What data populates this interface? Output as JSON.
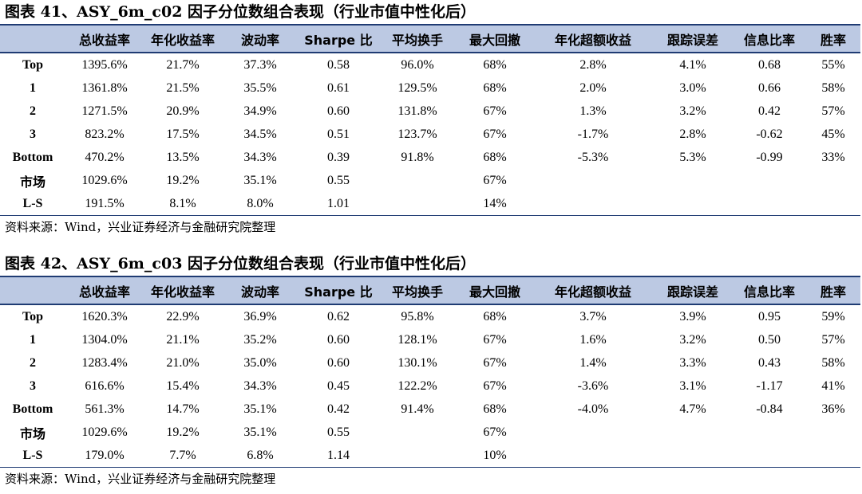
{
  "headers": [
    "",
    "总收益率",
    "年化收益率",
    "波动率",
    "Sharpe 比",
    "平均换手",
    "最大回撤",
    "年化超额收益",
    "跟踪误差",
    "信息比率",
    "胜率"
  ],
  "source": "资料来源：Wind，兴业证券经济与金融研究院整理",
  "tables": [
    {
      "title": "图表 41、ASY_6m_c02 因子分位数组合表现（行业市值中性化后）",
      "rows": [
        [
          "Top",
          "1395.6%",
          "21.7%",
          "37.3%",
          "0.58",
          "96.0%",
          "68%",
          "2.8%",
          "4.1%",
          "0.68",
          "55%"
        ],
        [
          "1",
          "1361.8%",
          "21.5%",
          "35.5%",
          "0.61",
          "129.5%",
          "68%",
          "2.0%",
          "3.0%",
          "0.66",
          "58%"
        ],
        [
          "2",
          "1271.5%",
          "20.9%",
          "34.9%",
          "0.60",
          "131.8%",
          "67%",
          "1.3%",
          "3.2%",
          "0.42",
          "57%"
        ],
        [
          "3",
          "823.2%",
          "17.5%",
          "34.5%",
          "0.51",
          "123.7%",
          "67%",
          "-1.7%",
          "2.8%",
          "-0.62",
          "45%"
        ],
        [
          "Bottom",
          "470.2%",
          "13.5%",
          "34.3%",
          "0.39",
          "91.8%",
          "68%",
          "-5.3%",
          "5.3%",
          "-0.99",
          "33%"
        ],
        [
          "市场",
          "1029.6%",
          "19.2%",
          "35.1%",
          "0.55",
          "",
          "67%",
          "",
          "",
          "",
          ""
        ],
        [
          "L-S",
          "191.5%",
          "8.1%",
          "8.0%",
          "1.01",
          "",
          "14%",
          "",
          "",
          "",
          ""
        ]
      ]
    },
    {
      "title": "图表 42、ASY_6m_c03 因子分位数组合表现（行业市值中性化后）",
      "rows": [
        [
          "Top",
          "1620.3%",
          "22.9%",
          "36.9%",
          "0.62",
          "95.8%",
          "68%",
          "3.7%",
          "3.9%",
          "0.95",
          "59%"
        ],
        [
          "1",
          "1304.0%",
          "21.1%",
          "35.2%",
          "0.60",
          "128.1%",
          "67%",
          "1.6%",
          "3.2%",
          "0.50",
          "57%"
        ],
        [
          "2",
          "1283.4%",
          "21.0%",
          "35.0%",
          "0.60",
          "130.1%",
          "67%",
          "1.4%",
          "3.3%",
          "0.43",
          "58%"
        ],
        [
          "3",
          "616.6%",
          "15.4%",
          "34.3%",
          "0.45",
          "122.2%",
          "67%",
          "-3.6%",
          "3.1%",
          "-1.17",
          "41%"
        ],
        [
          "Bottom",
          "561.3%",
          "14.7%",
          "35.1%",
          "0.42",
          "91.4%",
          "68%",
          "-4.0%",
          "4.7%",
          "-0.84",
          "36%"
        ],
        [
          "市场",
          "1029.6%",
          "19.2%",
          "35.1%",
          "0.55",
          "",
          "67%",
          "",
          "",
          "",
          ""
        ],
        [
          "L-S",
          "179.0%",
          "7.7%",
          "6.8%",
          "1.14",
          "",
          "10%",
          "",
          "",
          "",
          ""
        ]
      ]
    }
  ]
}
